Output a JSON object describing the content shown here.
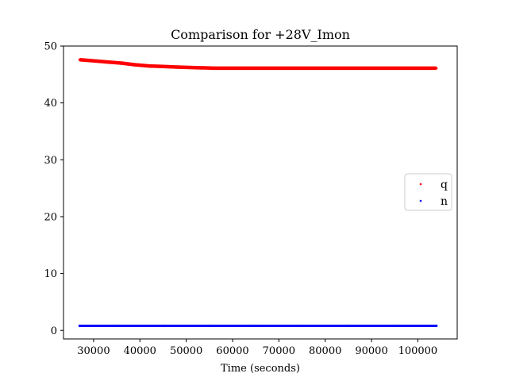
{
  "chart_data": {
    "type": "scatter",
    "title": "Comparison for +28V_Imon",
    "xlabel": "Time (seconds)",
    "ylabel": "",
    "xlim": [
      23500,
      108500
    ],
    "ylim": [
      -1.5,
      50
    ],
    "xticks": [
      30000,
      40000,
      50000,
      60000,
      70000,
      80000,
      90000,
      100000
    ],
    "yticks": [
      0,
      10,
      20,
      30,
      40,
      50
    ],
    "grid": false,
    "legend_position": "center-right",
    "series": [
      {
        "name": "q",
        "color": "#ff0000",
        "points": [
          [
            27000,
            47.6
          ],
          [
            30000,
            47.4
          ],
          [
            33000,
            47.2
          ],
          [
            36000,
            47.0
          ],
          [
            39000,
            46.7
          ],
          [
            42000,
            46.5
          ],
          [
            45000,
            46.4
          ],
          [
            48000,
            46.3
          ],
          [
            52000,
            46.2
          ],
          [
            56000,
            46.1
          ],
          [
            60000,
            46.1
          ],
          [
            65000,
            46.1
          ],
          [
            70000,
            46.1
          ],
          [
            75000,
            46.1
          ],
          [
            80000,
            46.1
          ],
          [
            85000,
            46.1
          ],
          [
            90000,
            46.1
          ],
          [
            95000,
            46.1
          ],
          [
            100000,
            46.1
          ],
          [
            104000,
            46.1
          ]
        ]
      },
      {
        "name": "n",
        "color": "#0000ff",
        "points": [
          [
            27000,
            0.8
          ],
          [
            35000,
            0.8
          ],
          [
            45000,
            0.8
          ],
          [
            55000,
            0.8
          ],
          [
            65000,
            0.8
          ],
          [
            75000,
            0.8
          ],
          [
            85000,
            0.8
          ],
          [
            95000,
            0.8
          ],
          [
            104000,
            0.8
          ]
        ]
      }
    ]
  }
}
